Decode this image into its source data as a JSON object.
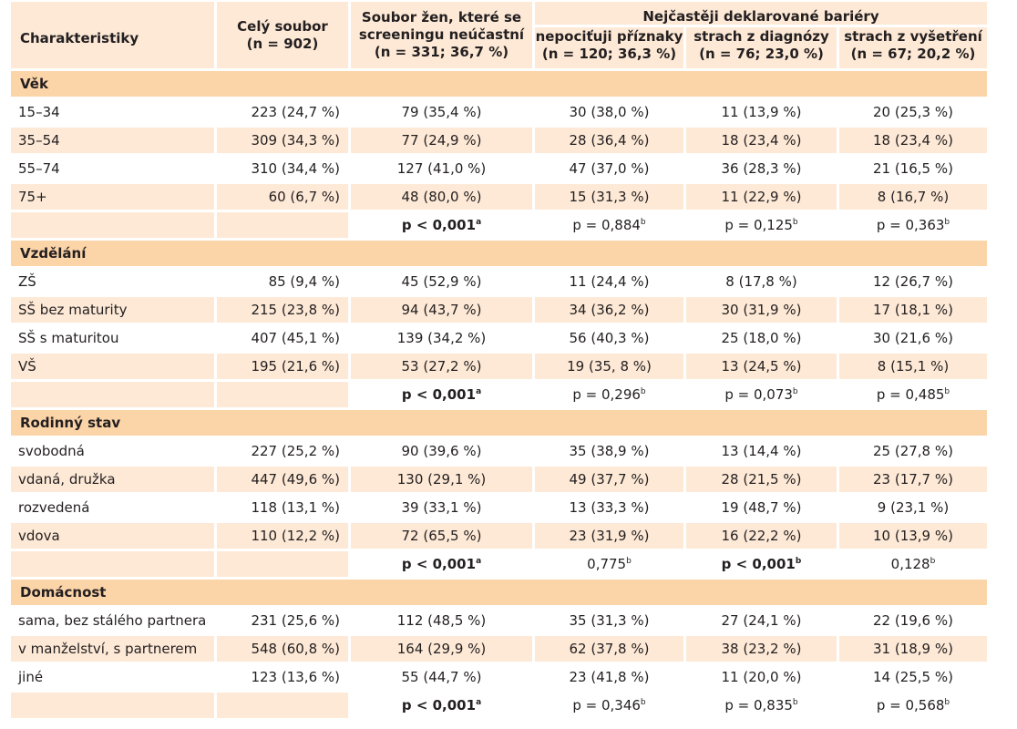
{
  "header": {
    "char": "Charakteristiky",
    "whole": "Celý soubor",
    "whole_n": "(n = 902)",
    "nonpart": "Soubor žen, které se screeningu neúčastní",
    "nonpart_n": "(n = 331; 36,7 %)",
    "barriers": "Nejčastěji deklarované bariéry",
    "b1": "nepociťuji příznaky",
    "b1_n": "(n = 120; 36,3 %)",
    "b2": "strach z diagnózy",
    "b2_n": "(n = 76; 23,0 %)",
    "b3": "strach z vyšetření",
    "b3_n": "(n = 67; 20,2 %)"
  },
  "sections": [
    {
      "title": "Věk",
      "rows": [
        [
          "15–34",
          "223 (24,7 %)",
          "79 (35,4 %)",
          "30 (38,0 %)",
          "11 (13,9 %)",
          "20 (25,3 %)"
        ],
        [
          "35–54",
          "309 (34,3 %)",
          "77 (24,9 %)",
          "28 (36,4 %)",
          "18 (23,4 %)",
          "18 (23,4 %)"
        ],
        [
          "55–74",
          "310 (34,4 %)",
          "127 (41,0 %)",
          "47 (37,0 %)",
          "36 (28,3 %)",
          "21 (16,5 %)"
        ],
        [
          "75+",
          "60 (6,7 %)",
          "48 (80,0 %)",
          "15 (31,3 %)",
          "11 (22,9 %)",
          "8 (16,7 %)"
        ]
      ],
      "p": [
        {
          "text": "p < 0,001",
          "sup": "a",
          "bold": true
        },
        {
          "text": "p = 0,884",
          "sup": "b",
          "bold": false
        },
        {
          "text": "p = 0,125",
          "sup": "b",
          "bold": false
        },
        {
          "text": "p = 0,363",
          "sup": "b",
          "bold": false
        }
      ]
    },
    {
      "title": "Vzdělání",
      "rows": [
        [
          "ZŠ",
          "85 (9,4 %)",
          "45 (52,9 %)",
          "11 (24,4 %)",
          "8 (17,8 %)",
          "12 (26,7 %)"
        ],
        [
          "SŠ bez maturity",
          "215 (23,8 %)",
          "94 (43,7 %)",
          "34 (36,2 %)",
          "30 (31,9 %)",
          "17 (18,1 %)"
        ],
        [
          "SŠ s maturitou",
          "407 (45,1 %)",
          "139 (34,2 %)",
          "56 (40,3 %)",
          "25 (18,0 %)",
          "30 (21,6 %)"
        ],
        [
          "VŠ",
          "195 (21,6 %)",
          "53 (27,2 %)",
          "19 (35, 8 %)",
          "13 (24,5 %)",
          "8 (15,1 %)"
        ]
      ],
      "p": [
        {
          "text": "p < 0,001",
          "sup": "a",
          "bold": true
        },
        {
          "text": "p = 0,296",
          "sup": "b",
          "bold": false
        },
        {
          "text": "p = 0,073",
          "sup": "b",
          "bold": false
        },
        {
          "text": "p = 0,485",
          "sup": "b",
          "bold": false
        }
      ]
    },
    {
      "title": "Rodinný stav",
      "rows": [
        [
          "svobodná",
          "227 (25,2 %)",
          "90 (39,6 %)",
          "35 (38,9 %)",
          "13 (14,4 %)",
          "25 (27,8 %)"
        ],
        [
          "vdaná, družka",
          "447 (49,6 %)",
          "130 (29,1 %)",
          "49 (37,7 %)",
          "28 (21,5 %)",
          "23 (17,7 %)"
        ],
        [
          "rozvedená",
          "118 (13,1 %)",
          "39 (33,1 %)",
          "13 (33,3 %)",
          "19 (48,7 %)",
          "9 (23,1 %)"
        ],
        [
          "vdova",
          "110 (12,2 %)",
          "72 (65,5 %)",
          "23 (31,9 %)",
          "16 (22,2 %)",
          "10 (13,9 %)"
        ]
      ],
      "p": [
        {
          "text": "p < 0,001",
          "sup": "a",
          "bold": true
        },
        {
          "text": "0,775",
          "sup": "b",
          "bold": false
        },
        {
          "text": "p < 0,001",
          "sup": "b",
          "bold": true
        },
        {
          "text": "0,128",
          "sup": "b",
          "bold": false
        }
      ]
    },
    {
      "title": "Domácnost",
      "rows": [
        [
          "sama, bez stálého partnera",
          "231 (25,6 %)",
          "112 (48,5 %)",
          "35 (31,3 %)",
          "27 (24,1 %)",
          "22 (19,6 %)"
        ],
        [
          "v manželství, s partnerem",
          "548 (60,8 %)",
          "164 (29,9 %)",
          "62 (37,8 %)",
          "38 (23,2 %)",
          "31 (18,9 %)"
        ],
        [
          "jiné",
          "123 (13,6 %)",
          "55 (44,7 %)",
          "23 (41,8 %)",
          "11 (20,0 %)",
          "14 (25,5 %)"
        ]
      ],
      "p": [
        {
          "text": "p < 0,001",
          "sup": "a",
          "bold": true
        },
        {
          "text": "p = 0,346",
          "sup": "b",
          "bold": false
        },
        {
          "text": "p = 0,835",
          "sup": "b",
          "bold": false
        },
        {
          "text": "p = 0,568",
          "sup": "b",
          "bold": false
        }
      ]
    }
  ]
}
